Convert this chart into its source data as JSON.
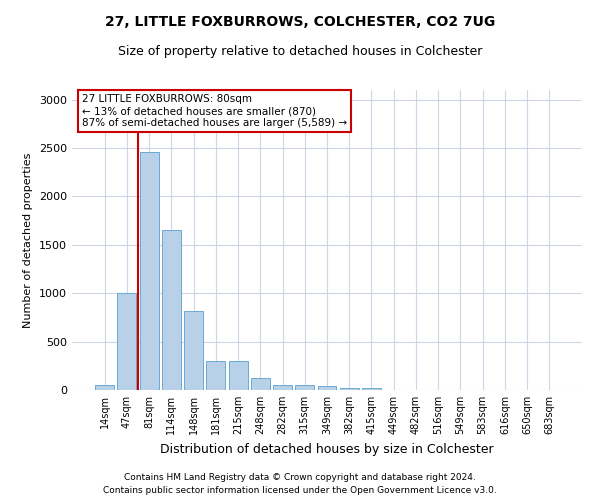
{
  "title1": "27, LITTLE FOXBURROWS, COLCHESTER, CO2 7UG",
  "title2": "Size of property relative to detached houses in Colchester",
  "xlabel": "Distribution of detached houses by size in Colchester",
  "ylabel": "Number of detached properties",
  "categories": [
    "14sqm",
    "47sqm",
    "81sqm",
    "114sqm",
    "148sqm",
    "181sqm",
    "215sqm",
    "248sqm",
    "282sqm",
    "315sqm",
    "349sqm",
    "382sqm",
    "415sqm",
    "449sqm",
    "482sqm",
    "516sqm",
    "549sqm",
    "583sqm",
    "616sqm",
    "650sqm",
    "683sqm"
  ],
  "values": [
    55,
    1000,
    2460,
    1650,
    820,
    295,
    295,
    120,
    55,
    50,
    45,
    20,
    20,
    0,
    0,
    0,
    0,
    0,
    0,
    0,
    0
  ],
  "bar_color": "#b8d0e8",
  "bar_edge_color": "#6aaad4",
  "vline_color": "#cc0000",
  "annotation_text": "27 LITTLE FOXBURROWS: 80sqm\n← 13% of detached houses are smaller (870)\n87% of semi-detached houses are larger (5,589) →",
  "annotation_box_color": "#ffffff",
  "annotation_box_edge_color": "#cc0000",
  "ylim": [
    0,
    3100
  ],
  "yticks": [
    0,
    500,
    1000,
    1500,
    2000,
    2500,
    3000
  ],
  "footnote1": "Contains HM Land Registry data © Crown copyright and database right 2024.",
  "footnote2": "Contains public sector information licensed under the Open Government Licence v3.0.",
  "bg_color": "#ffffff",
  "grid_color": "#ccd6e8"
}
